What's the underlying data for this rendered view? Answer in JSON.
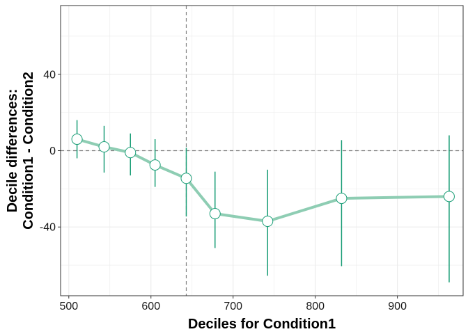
{
  "chart_data": {
    "type": "line",
    "title": "",
    "xlabel": "Deciles for Condition1",
    "ylabel_lines": [
      "Decile differences:",
      "Condition1 - Condition2"
    ],
    "xlim": [
      490,
      980
    ],
    "ylim": [
      -76,
      76
    ],
    "x_ticks": [
      500,
      600,
      700,
      800,
      900
    ],
    "y_ticks": [
      -40,
      0,
      40
    ],
    "y_tick_labels": [
      "-40",
      "0",
      "40"
    ],
    "x_tick_labels": [
      "500",
      "600",
      "700",
      "800",
      "900"
    ],
    "grid": true,
    "reference_lines": {
      "vertical_x": 643,
      "horizontal_y": 0
    },
    "colors": {
      "line": "#8ecdb3",
      "errorbar": "#1b9e77",
      "marker_fill": "#ffffff",
      "marker_stroke": "#1b9e77",
      "ref": "#808080",
      "grid": "#ebebeb"
    },
    "series": [
      {
        "x": [
          510,
          543,
          575,
          605,
          643,
          678,
          742,
          832,
          963
        ],
        "y": [
          6,
          2,
          -1,
          -7.5,
          -14.5,
          -33,
          -37,
          -25,
          -24
        ],
        "lower": [
          -4,
          -11.5,
          -13,
          -19,
          -34.5,
          -51,
          -65.5,
          -60.5,
          -69
        ],
        "upper": [
          16,
          13,
          9,
          6,
          1.5,
          -11,
          -10,
          5.5,
          8
        ]
      }
    ]
  }
}
